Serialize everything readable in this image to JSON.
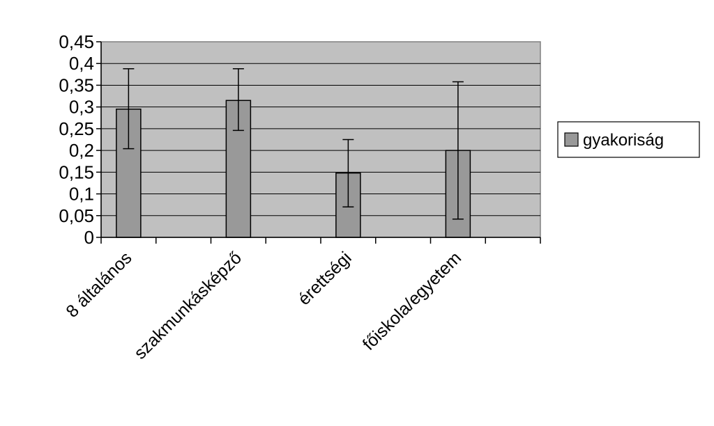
{
  "chart_data": {
    "type": "bar",
    "categories": [
      "8 általános",
      "szakmunkásképző",
      "érettségi",
      "főiskola/egyetem"
    ],
    "series": [
      {
        "name": "gyakoriság",
        "values": [
          0.295,
          0.315,
          0.148,
          0.2
        ],
        "error_low": [
          0.204,
          0.246,
          0.07,
          0.042
        ],
        "error_high": [
          0.388,
          0.388,
          0.225,
          0.358
        ]
      }
    ],
    "y_ticks": [
      "0",
      "0,05",
      "0,1",
      "0,15",
      "0,2",
      "0,25",
      "0,3",
      "0,35",
      "0,4",
      "0,45"
    ],
    "ylim": [
      0,
      0.45
    ],
    "grid": true,
    "legend_position": "right",
    "plot_background": "#c0c0c0",
    "bar_color": "#999999"
  }
}
